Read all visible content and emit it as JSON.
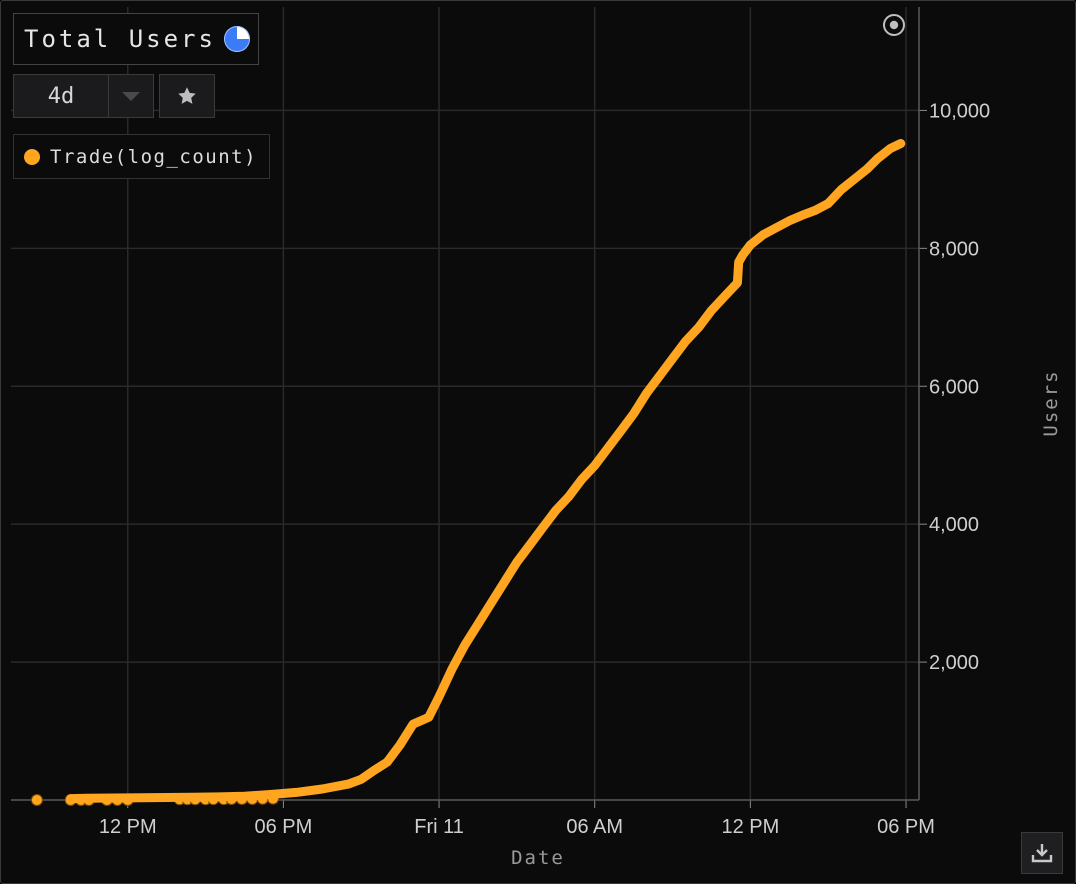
{
  "panel": {
    "title": "Total Users",
    "range": {
      "selected": "4d"
    }
  },
  "icons": {
    "status": "loading-pie-icon",
    "caret": "chevron-down-icon",
    "favorite": "star-icon",
    "target": "target-icon",
    "download": "download-icon"
  },
  "colors": {
    "background": "#0b0b0c",
    "grid": "#2a2a2a",
    "series": "#ffa51f",
    "text": "#cfcfcf"
  },
  "chart_data": {
    "type": "line",
    "xlabel": "Date",
    "ylabel": "Users",
    "x_unit": "hours since Thu 10, 12 AM",
    "x_ticks": [
      {
        "label": "12 PM",
        "x": 12
      },
      {
        "label": "06 PM",
        "x": 18
      },
      {
        "label": "Fri 11",
        "x": 24
      },
      {
        "label": "06 AM",
        "x": 30
      },
      {
        "label": "12 PM",
        "x": 36
      },
      {
        "label": "06 PM",
        "x": 42
      }
    ],
    "xlim": [
      7.5,
      42.5
    ],
    "y_ticks": [
      2000,
      4000,
      6000,
      8000,
      10000
    ],
    "ylim": [
      0,
      11500
    ],
    "grid": true,
    "legend": {
      "position": "top-left",
      "entries": [
        "Trade(log_count)"
      ]
    },
    "series": [
      {
        "name": "Trade(log_count)",
        "line": [
          [
            9.8,
            20
          ],
          [
            10.4,
            25
          ],
          [
            12.0,
            30
          ],
          [
            14.5,
            40
          ],
          [
            15.5,
            45
          ],
          [
            16.5,
            55
          ],
          [
            17.5,
            80
          ],
          [
            18.5,
            110
          ],
          [
            19.5,
            160
          ],
          [
            20.5,
            230
          ],
          [
            21.0,
            300
          ],
          [
            21.5,
            430
          ],
          [
            22.0,
            550
          ],
          [
            22.5,
            800
          ],
          [
            23.0,
            1100
          ],
          [
            23.3,
            1150
          ],
          [
            23.6,
            1200
          ],
          [
            24.0,
            1500
          ],
          [
            24.5,
            1900
          ],
          [
            25.0,
            2250
          ],
          [
            25.5,
            2550
          ],
          [
            26.0,
            2850
          ],
          [
            26.5,
            3150
          ],
          [
            27.0,
            3450
          ],
          [
            27.5,
            3700
          ],
          [
            28.0,
            3950
          ],
          [
            28.5,
            4200
          ],
          [
            29.0,
            4400
          ],
          [
            29.5,
            4650
          ],
          [
            30.0,
            4850
          ],
          [
            30.5,
            5100
          ],
          [
            31.0,
            5350
          ],
          [
            31.5,
            5600
          ],
          [
            32.0,
            5900
          ],
          [
            32.5,
            6150
          ],
          [
            33.0,
            6400
          ],
          [
            33.5,
            6650
          ],
          [
            34.0,
            6850
          ],
          [
            34.5,
            7100
          ],
          [
            35.0,
            7300
          ],
          [
            35.5,
            7500
          ],
          [
            35.55,
            7800
          ],
          [
            35.7,
            7900
          ],
          [
            36.0,
            8050
          ],
          [
            36.5,
            8200
          ],
          [
            37.0,
            8300
          ],
          [
            37.5,
            8400
          ],
          [
            38.0,
            8480
          ],
          [
            38.5,
            8550
          ],
          [
            39.0,
            8650
          ],
          [
            39.5,
            8850
          ],
          [
            40.0,
            9000
          ],
          [
            40.5,
            9150
          ],
          [
            40.9,
            9300
          ],
          [
            41.4,
            9450
          ],
          [
            41.8,
            9520
          ]
        ],
        "points": [
          [
            8.5,
            0
          ],
          [
            9.8,
            0
          ],
          [
            10.2,
            0
          ],
          [
            10.5,
            0
          ],
          [
            11.2,
            0
          ],
          [
            11.6,
            0
          ],
          [
            12.0,
            0
          ],
          [
            14.0,
            10
          ],
          [
            14.3,
            10
          ],
          [
            14.6,
            10
          ],
          [
            15.0,
            10
          ],
          [
            15.3,
            12
          ],
          [
            15.7,
            12
          ],
          [
            16.0,
            14
          ],
          [
            16.4,
            14
          ],
          [
            16.8,
            15
          ],
          [
            17.2,
            18
          ],
          [
            17.6,
            20
          ]
        ]
      }
    ]
  }
}
